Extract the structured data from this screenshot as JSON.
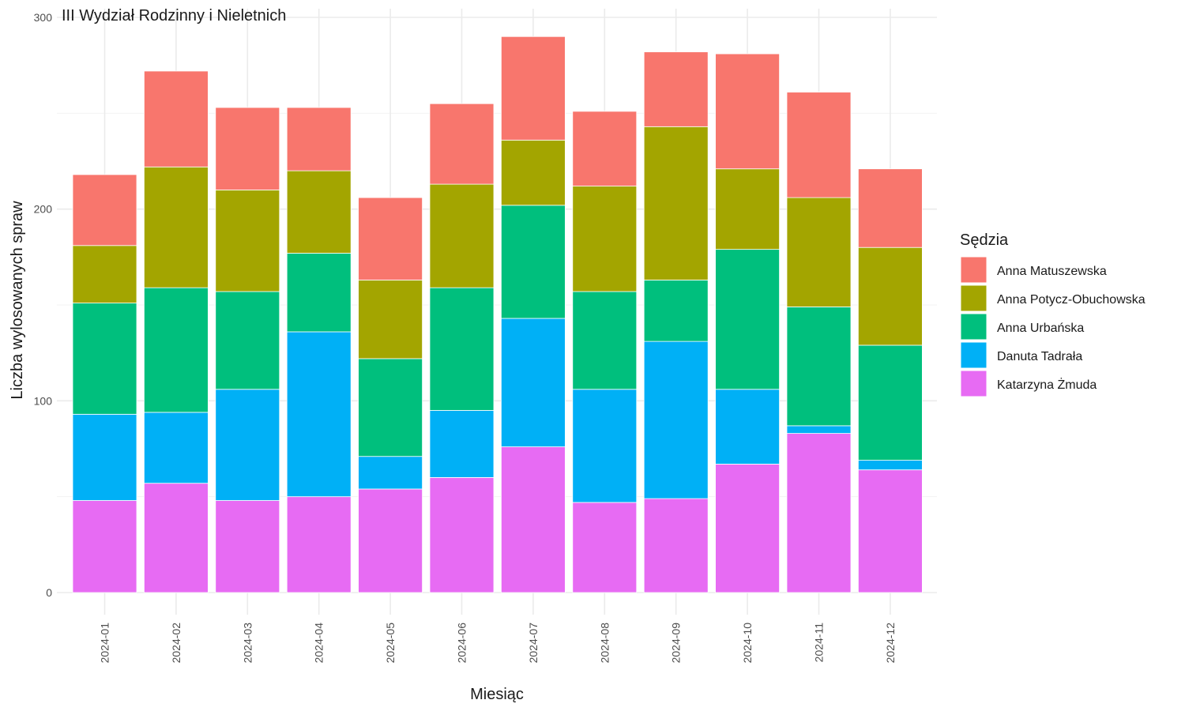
{
  "chart_data": {
    "type": "bar",
    "stacked": true,
    "title": "III Wydział Rodzinny i Nieletnich",
    "xlabel": "Miesiąc",
    "ylabel": "Liczba wylosowanych spraw",
    "ylim": [
      0,
      300
    ],
    "yticks": [
      0,
      100,
      200,
      300
    ],
    "grid": true,
    "legend_position": "right",
    "legend_title": "Sędzia",
    "categories": [
      "2024-01",
      "2024-02",
      "2024-03",
      "2024-04",
      "2024-05",
      "2024-06",
      "2024-07",
      "2024-08",
      "2024-09",
      "2024-10",
      "2024-11",
      "2024-12"
    ],
    "series": [
      {
        "name": "Katarzyna Żmuda",
        "color": "#E76BF3",
        "values": [
          48,
          57,
          48,
          50,
          54,
          60,
          76,
          47,
          49,
          67,
          83,
          64
        ]
      },
      {
        "name": "Danuta Tadrała",
        "color": "#00B0F6",
        "values": [
          45,
          37,
          58,
          86,
          17,
          35,
          67,
          59,
          82,
          39,
          4,
          5
        ]
      },
      {
        "name": "Anna Urbańska",
        "color": "#00BF7D",
        "values": [
          58,
          65,
          51,
          41,
          51,
          64,
          59,
          51,
          32,
          73,
          62,
          60
        ]
      },
      {
        "name": "Anna Potycz-Obuchowska",
        "color": "#A3A500",
        "values": [
          30,
          63,
          53,
          43,
          41,
          54,
          34,
          55,
          80,
          42,
          57,
          51
        ]
      },
      {
        "name": "Anna Matuszewska",
        "color": "#F8766D",
        "values": [
          37,
          50,
          43,
          33,
          43,
          42,
          54,
          39,
          39,
          60,
          55,
          41
        ]
      }
    ]
  }
}
